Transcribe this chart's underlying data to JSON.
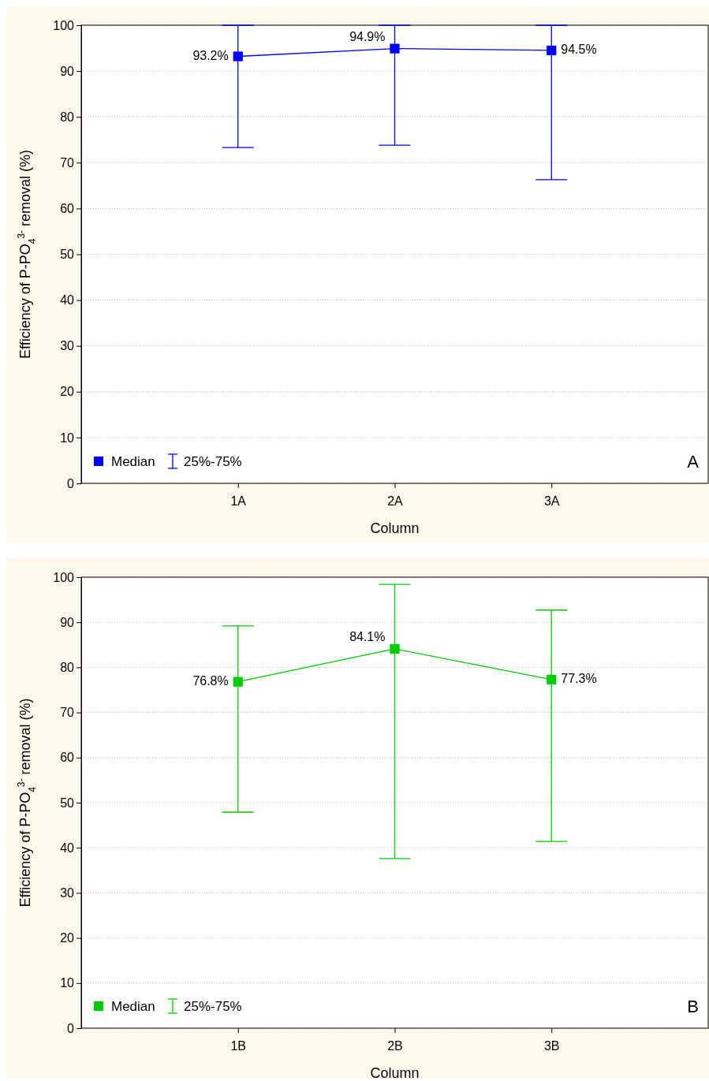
{
  "chart_data": [
    {
      "type": "line",
      "xlabel": "Column",
      "ylabel": "Efficiency of P-PO$_{4}$$^{3-}$ removal  (%)",
      "categories": [
        "1A",
        "2A",
        "3A"
      ],
      "series": [
        {
          "name": "Median",
          "color": "#0000ff",
          "values": [
            93.2,
            94.9,
            94.5
          ],
          "errors": [
            [
              73.3,
              100
            ],
            [
              73.8,
              100
            ],
            [
              66.3,
              100
            ]
          ],
          "value_labels": [
            "93.2%",
            "94.9%",
            "94.5%"
          ]
        }
      ],
      "ylim": [
        0,
        100
      ],
      "yticks": [
        0,
        10,
        20,
        30,
        40,
        50,
        60,
        70,
        80,
        90,
        100
      ],
      "grid": "y",
      "marker": "square",
      "legend": "bottom left",
      "annotations": [
        "25%-75%",
        "A"
      ]
    },
    {
      "type": "line",
      "xlabel": "Column",
      "ylabel": "Efficiency of P-PO$_{4}$$^{3-}$ removal  (%)",
      "categories": [
        "1B",
        "2B",
        "3B"
      ],
      "series": [
        {
          "name": "Median",
          "color": "#00cc00",
          "values": [
            76.8,
            84.1,
            77.3
          ],
          "errors": [
            [
              47.9,
              89.2
            ],
            [
              37.6,
              98.4
            ],
            [
              41.4,
              92.7
            ]
          ],
          "value_labels": [
            "76.8%",
            "84.1%",
            "77.3%"
          ]
        }
      ],
      "ylim": [
        0,
        100
      ],
      "yticks": [
        0,
        10,
        20,
        30,
        40,
        50,
        60,
        70,
        80,
        90,
        100
      ],
      "grid": "y",
      "marker": "square",
      "legend": "bottom left",
      "annotations": [
        "25%-75%",
        "B"
      ]
    }
  ]
}
